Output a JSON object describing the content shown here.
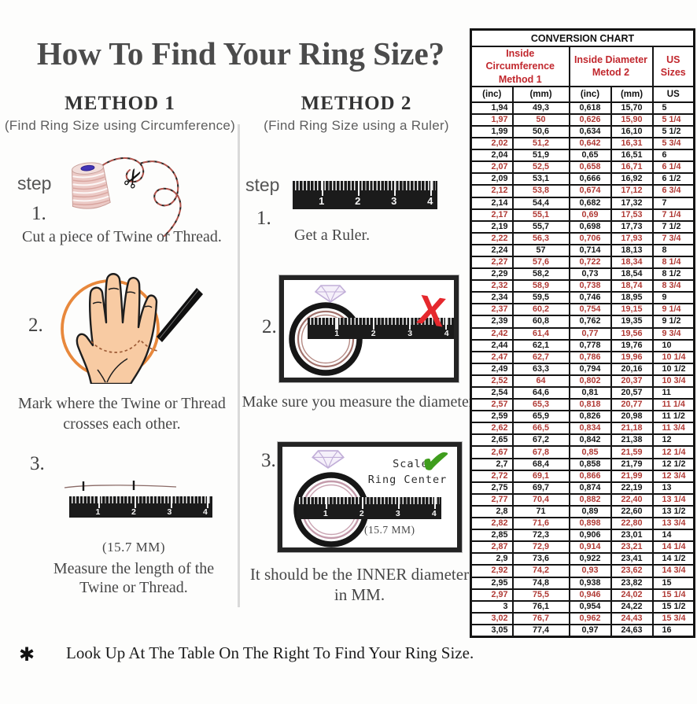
{
  "page": {
    "title": "How To Find Your Ring Size?",
    "footnote_marker": "✱",
    "footnote": "Look Up At The Table On The Right To Find Your Ring Size."
  },
  "rulers": {
    "numbers": [
      "1",
      "2",
      "3",
      "4"
    ]
  },
  "method1": {
    "heading": "METHOD 1",
    "subheading": "(Find Ring Size using Circumference)",
    "step_label": "step",
    "steps": [
      {
        "num": "1.",
        "text": "Cut a piece of  Twine or Thread."
      },
      {
        "num": "2.",
        "text_line1": "Mark where the Twine or Thread",
        "text_line2": "crosses each other."
      },
      {
        "num": "3.",
        "measure": "(15.7 MM)",
        "text_line1": "Measure the length of the",
        "text_line2": "Twine or Thread."
      }
    ]
  },
  "method2": {
    "heading": "METHOD 2",
    "subheading": "(Find Ring Size using a Ruler)",
    "step_label": "step",
    "steps": [
      {
        "num": "1.",
        "text": "Get a Ruler."
      },
      {
        "num": "2.",
        "text": "Make sure you measure the diameter."
      },
      {
        "num": "3.",
        "scale_line1": "Scale",
        "scale_line2": "Ring Center",
        "measure": "(15.7 MM)",
        "text_line1": "It should be the INNER diameter",
        "text_line2": "in MM."
      }
    ]
  },
  "conversion_chart": {
    "title": "CONVERSION CHART",
    "group_headers": [
      {
        "line1": "Inside Circumference",
        "line2": "Method 1"
      },
      {
        "line1": "Inside Diameter",
        "line2": "Metod 2"
      },
      {
        "line1": "US Sizes",
        "line2": ""
      }
    ],
    "subheaders": [
      "(inc)",
      "(mm)",
      "(inc)",
      "(mm)",
      "US"
    ],
    "colors": {
      "header_red": "#c1272d",
      "row_red": "#b03a35",
      "text_black": "#181818"
    },
    "rows": [
      [
        "1,94",
        "49,3",
        "0,618",
        "15,70",
        "5"
      ],
      [
        "1,97",
        "50",
        "0,626",
        "15,90",
        "5 1/4"
      ],
      [
        "1,99",
        "50,6",
        "0,634",
        "16,10",
        "5 1/2"
      ],
      [
        "2,02",
        "51,2",
        "0,642",
        "16,31",
        "5 3/4"
      ],
      [
        "2,04",
        "51,9",
        "0,65",
        "16,51",
        "6"
      ],
      [
        "2,07",
        "52,5",
        "0,658",
        "16,71",
        "6 1/4"
      ],
      [
        "2,09",
        "53,1",
        "0,666",
        "16,92",
        "6 1/2"
      ],
      [
        "2,12",
        "53,8",
        "0,674",
        "17,12",
        "6 3/4"
      ],
      [
        "2,14",
        "54,4",
        "0,682",
        "17,32",
        "7"
      ],
      [
        "2,17",
        "55,1",
        "0,69",
        "17,53",
        "7 1/4"
      ],
      [
        "2,19",
        "55,7",
        "0,698",
        "17,73",
        "7 1/2"
      ],
      [
        "2,22",
        "56,3",
        "0,706",
        "17,93",
        "7 3/4"
      ],
      [
        "2,24",
        "57",
        "0,714",
        "18,13",
        "8"
      ],
      [
        "2,27",
        "57,6",
        "0,722",
        "18,34",
        "8 1/4"
      ],
      [
        "2,29",
        "58,2",
        "0,73",
        "18,54",
        "8 1/2"
      ],
      [
        "2,32",
        "58,9",
        "0,738",
        "18,74",
        "8 3/4"
      ],
      [
        "2,34",
        "59,5",
        "0,746",
        "18,95",
        "9"
      ],
      [
        "2,37",
        "60,2",
        "0,754",
        "19,15",
        "9 1/4"
      ],
      [
        "2,39",
        "60,8",
        "0,762",
        "19,35",
        "9 1/2"
      ],
      [
        "2,42",
        "61,4",
        "0,77",
        "19,56",
        "9 3/4"
      ],
      [
        "2,44",
        "62,1",
        "0,778",
        "19,76",
        "10"
      ],
      [
        "2,47",
        "62,7",
        "0,786",
        "19,96",
        "10 1/4"
      ],
      [
        "2,49",
        "63,3",
        "0,794",
        "20,16",
        "10 1/2"
      ],
      [
        "2,52",
        "64",
        "0,802",
        "20,37",
        "10 3/4"
      ],
      [
        "2,54",
        "64,6",
        "0,81",
        "20,57",
        "11"
      ],
      [
        "2,57",
        "65,3",
        "0,818",
        "20,77",
        "11 1/4"
      ],
      [
        "2,59",
        "65,9",
        "0,826",
        "20,98",
        "11 1/2"
      ],
      [
        "2,62",
        "66,5",
        "0,834",
        "21,18",
        "11 3/4"
      ],
      [
        "2,65",
        "67,2",
        "0,842",
        "21,38",
        "12"
      ],
      [
        "2,67",
        "67,8",
        "0,85",
        "21,59",
        "12 1/4"
      ],
      [
        "2,7",
        "68,4",
        "0,858",
        "21,79",
        "12 1/2"
      ],
      [
        "2,72",
        "69,1",
        "0,866",
        "21,99",
        "12 3/4"
      ],
      [
        "2,75",
        "69,7",
        "0,874",
        "22,19",
        "13"
      ],
      [
        "2,77",
        "70,4",
        "0,882",
        "22,40",
        "13 1/4"
      ],
      [
        "2,8",
        "71",
        "0,89",
        "22,60",
        "13 1/2"
      ],
      [
        "2,82",
        "71,6",
        "0,898",
        "22,80",
        "13 3/4"
      ],
      [
        "2,85",
        "72,3",
        "0,906",
        "23,01",
        "14"
      ],
      [
        "2,87",
        "72,9",
        "0,914",
        "23,21",
        "14 1/4"
      ],
      [
        "2,9",
        "73,6",
        "0,922",
        "23,41",
        "14 1/2"
      ],
      [
        "2,92",
        "74,2",
        "0,93",
        "23,62",
        "14 3/4"
      ],
      [
        "2,95",
        "74,8",
        "0,938",
        "23,82",
        "15"
      ],
      [
        "2,97",
        "75,5",
        "0,946",
        "24,02",
        "15 1/4"
      ],
      [
        "3",
        "76,1",
        "0,954",
        "24,22",
        "15 1/2"
      ],
      [
        "3,02",
        "76,7",
        "0,962",
        "24,43",
        "15 3/4"
      ],
      [
        "3,05",
        "77,4",
        "0,97",
        "24,63",
        "16"
      ]
    ]
  }
}
